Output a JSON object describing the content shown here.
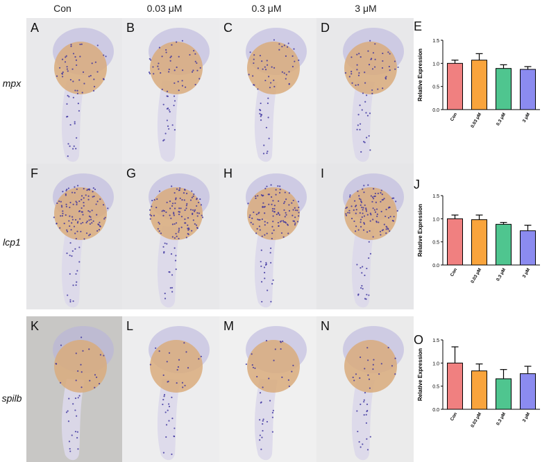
{
  "column_headers": [
    "Con",
    "0.03 μM",
    "0.3 μM",
    "3 μM"
  ],
  "row_labels": [
    "mpx",
    "lcp1",
    "spilb"
  ],
  "panel_letters": [
    [
      "A",
      "B",
      "C",
      "D"
    ],
    [
      "F",
      "G",
      "H",
      "I"
    ],
    [
      "K",
      "L",
      "M",
      "N"
    ]
  ],
  "colors": {
    "con": "#f08080",
    "c003": "#f9a43c",
    "c03": "#4fc58f",
    "c3": "#8b8bf0",
    "stain": "#3a2f9e",
    "yolk": "#d9ab7c"
  },
  "chart_data": [
    {
      "panel": "E",
      "type": "bar",
      "categories": [
        "Con",
        "0.03 μM",
        "0.3 μM",
        "3 μM"
      ],
      "values": [
        1.0,
        1.07,
        0.89,
        0.87
      ],
      "errors": [
        0.07,
        0.14,
        0.08,
        0.06
      ],
      "ylabel": "Relative Expression",
      "ylim": [
        0,
        1.5
      ],
      "yticks": [
        "0.0",
        "0.5",
        "1.0",
        "1.5"
      ]
    },
    {
      "panel": "J",
      "type": "bar",
      "categories": [
        "Con",
        "0.03 μM",
        "0.3 μM",
        "3 μM"
      ],
      "values": [
        1.0,
        0.98,
        0.88,
        0.74
      ],
      "errors": [
        0.08,
        0.1,
        0.04,
        0.12
      ],
      "ylabel": "Relative Expression",
      "ylim": [
        0,
        1.5
      ],
      "yticks": [
        "0.0",
        "0.5",
        "1.0",
        "1.5"
      ]
    },
    {
      "panel": "O",
      "type": "bar",
      "categories": [
        "Con",
        "0.03 μM",
        "0.3 μM",
        "3 μM"
      ],
      "values": [
        1.0,
        0.83,
        0.66,
        0.77
      ],
      "errors": [
        0.35,
        0.15,
        0.2,
        0.16
      ],
      "ylabel": "Relative Expression",
      "ylim": [
        0,
        1.5
      ],
      "yticks": [
        "0.0",
        "0.5",
        "1.0",
        "1.5"
      ]
    }
  ]
}
